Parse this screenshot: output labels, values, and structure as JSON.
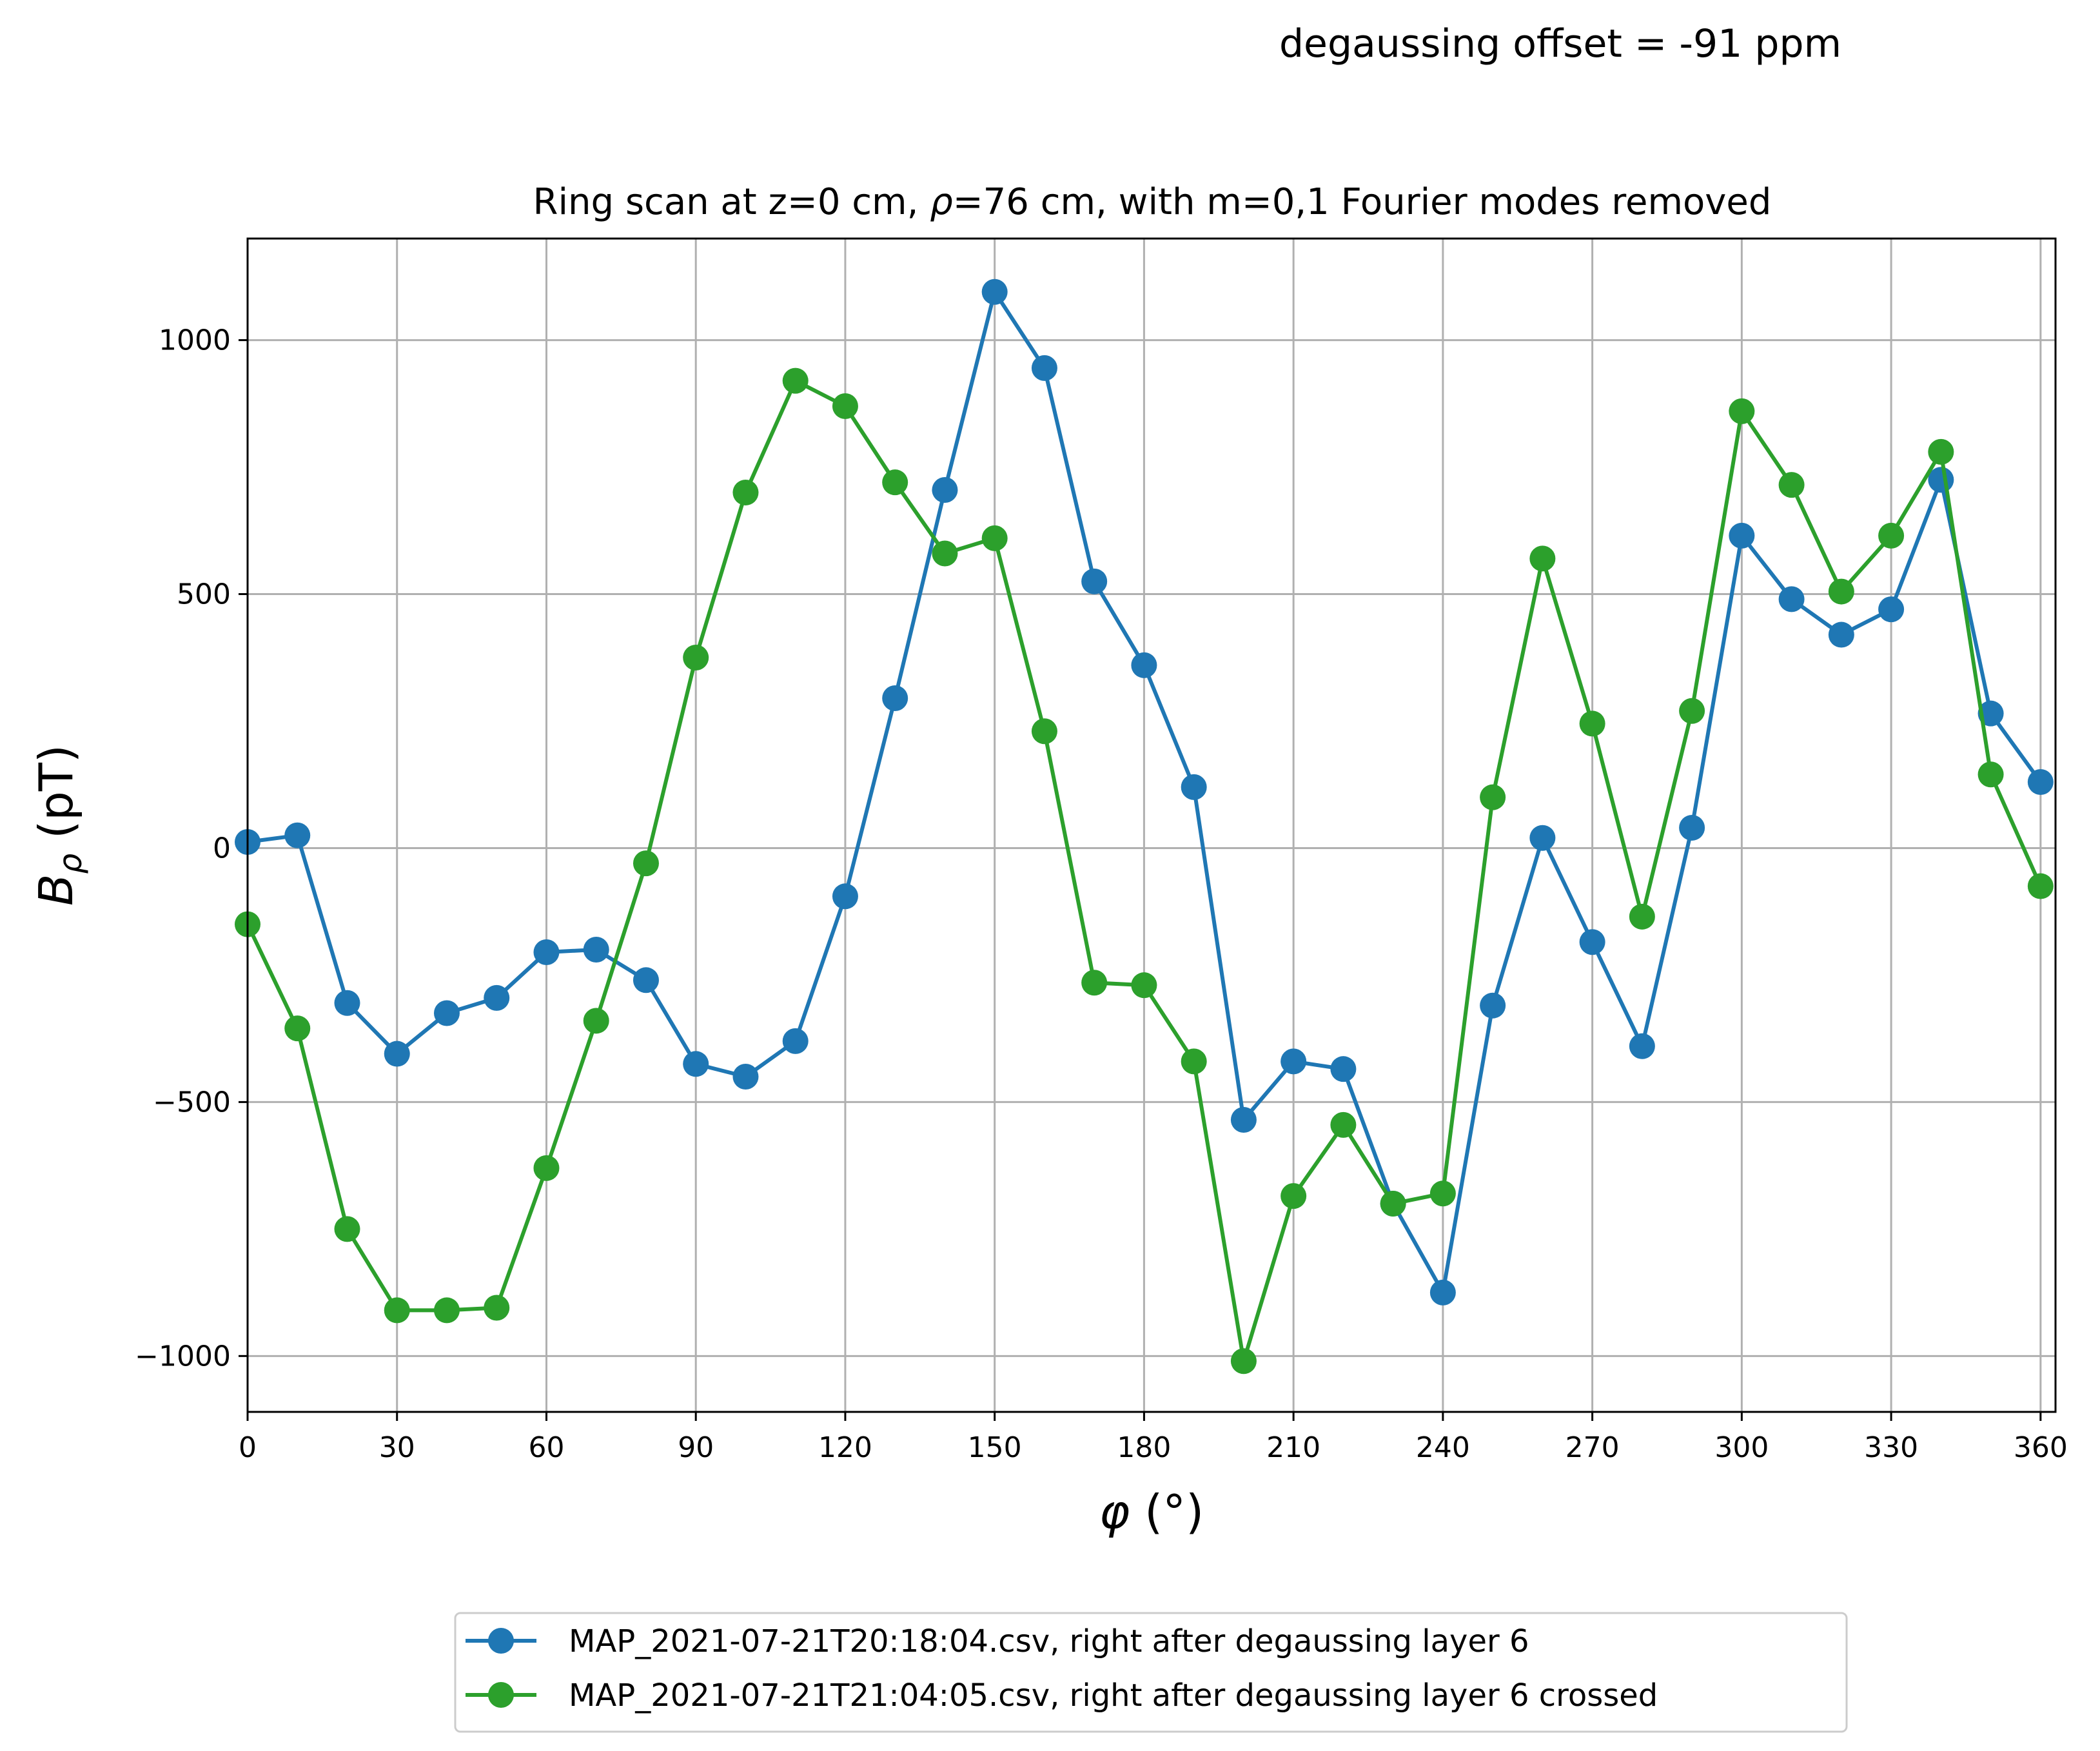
{
  "header_note": "degaussing offset = -91 ppm",
  "chart_data": {
    "type": "line",
    "title": "Ring scan at z=0 cm, ρ=76 cm, with m=0,1 Fourier modes removed",
    "xlabel": "φ (°)",
    "ylabel": "Bρ (pT)",
    "xlim": [
      0,
      363
    ],
    "ylim": [
      -1110,
      1200
    ],
    "x_ticks": [
      0,
      30,
      60,
      90,
      120,
      150,
      180,
      210,
      240,
      270,
      300,
      330,
      360
    ],
    "y_ticks": [
      -1000,
      -500,
      0,
      500,
      1000
    ],
    "y_tick_labels": [
      "−1000",
      "−500",
      "0",
      "500",
      "1000"
    ],
    "grid": true,
    "legend_position": "bottom-center (below plot)",
    "x": [
      0,
      10,
      20,
      30,
      40,
      50,
      60,
      70,
      80,
      90,
      100,
      110,
      120,
      130,
      140,
      150,
      160,
      170,
      180,
      190,
      200,
      210,
      220,
      230,
      240,
      250,
      260,
      270,
      280,
      290,
      300,
      310,
      320,
      330,
      340,
      350,
      360
    ],
    "series": [
      {
        "name": "MAP_2021-07-21T20:18:04.csv, right after degaussing layer 6",
        "color": "#1f77b4",
        "values": [
          12,
          25,
          -305,
          -405,
          -325,
          -295,
          -205,
          -200,
          -260,
          -425,
          -450,
          -380,
          -95,
          295,
          705,
          1095,
          945,
          525,
          360,
          120,
          -535,
          -420,
          -435,
          -700,
          -875,
          -310,
          20,
          -185,
          -390,
          40,
          615,
          490,
          420,
          470,
          725,
          265,
          130
        ]
      },
      {
        "name": "MAP_2021-07-21T21:04:05.csv, right after degaussing layer 6 crossed",
        "color": "#2ca02c",
        "values": [
          -150,
          -355,
          -750,
          -910,
          -910,
          -905,
          -630,
          -340,
          -30,
          375,
          700,
          920,
          870,
          720,
          580,
          610,
          230,
          -265,
          -270,
          -420,
          -1010,
          -685,
          -545,
          -700,
          -680,
          100,
          570,
          245,
          -135,
          270,
          860,
          715,
          505,
          615,
          780,
          145,
          -75
        ]
      }
    ]
  }
}
